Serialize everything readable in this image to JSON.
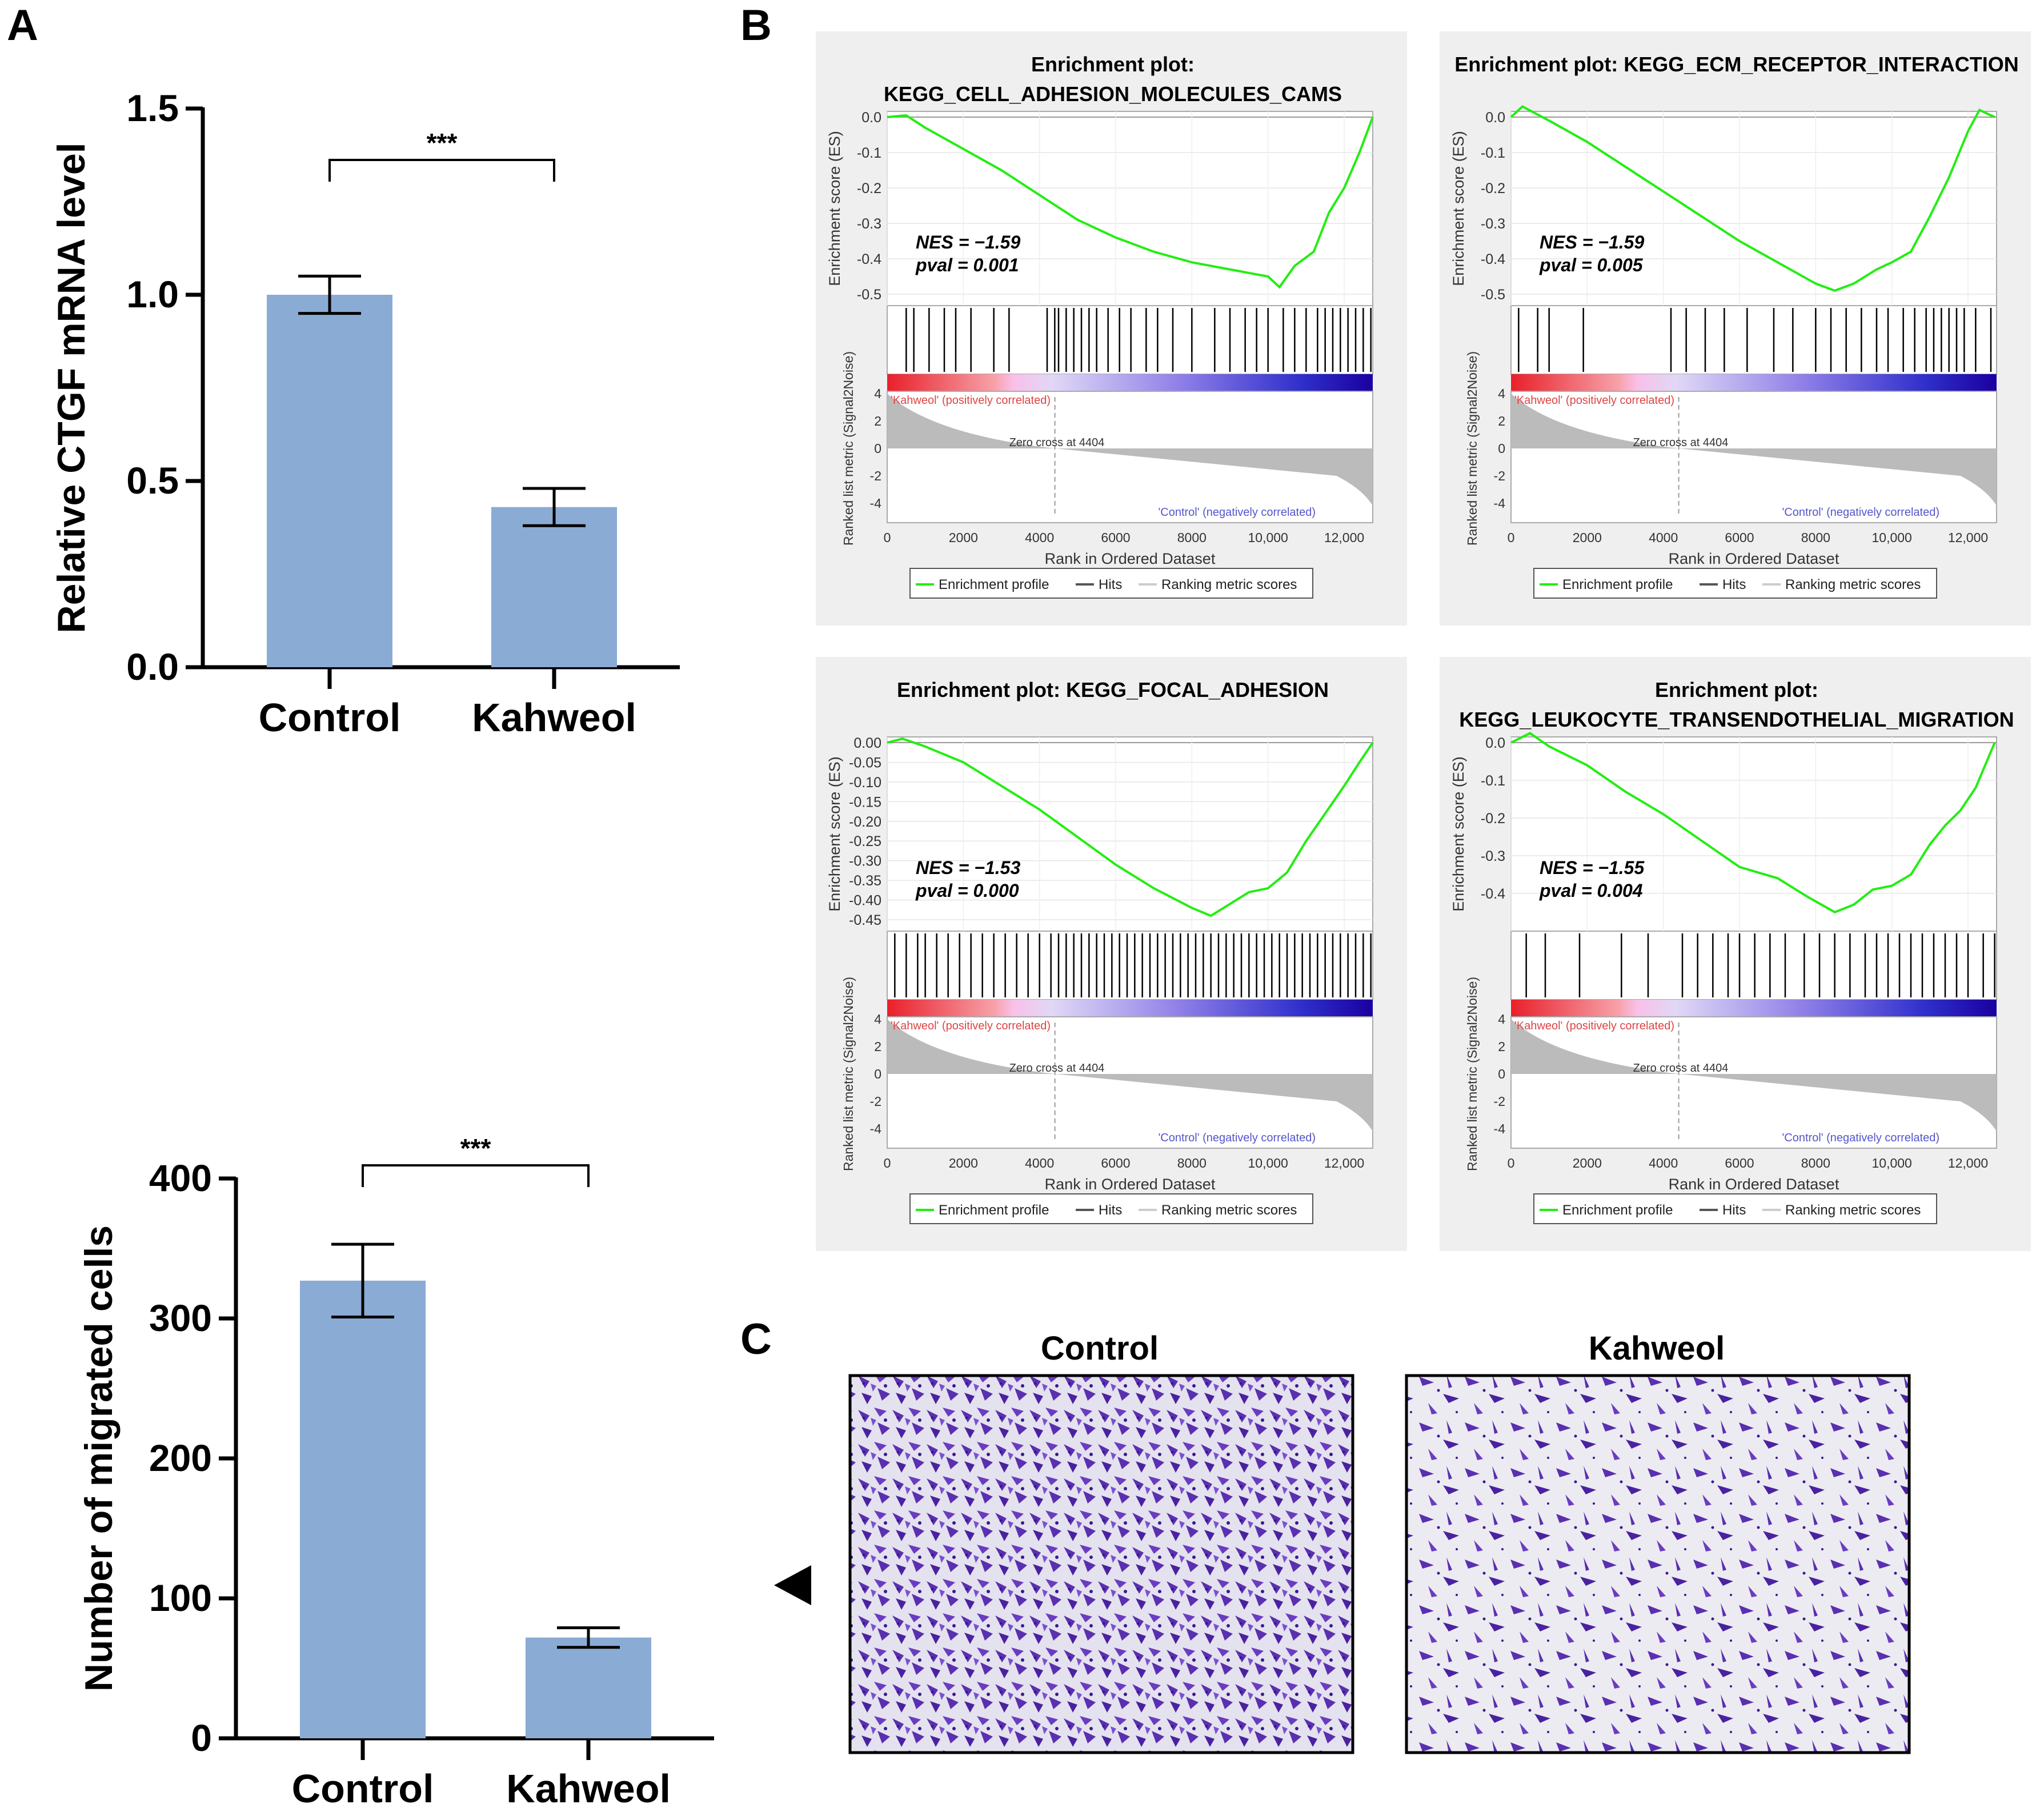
{
  "panel_labels": {
    "A": "A",
    "B": "B",
    "C": "C"
  },
  "significance": "***",
  "colors": {
    "bar": "#8aabd4",
    "es_line": "#22ee11",
    "panel_bg": "#efefef",
    "neg_label": "#5555cc",
    "pos_label": "#dd4444",
    "cells": "#5a2fb0"
  },
  "gsea_common": {
    "es_ylabel": "Enrichment score (ES)",
    "metric_ylabel": "Ranked list metric (Signal2Noise)",
    "xlabel": "Rank in Ordered Dataset",
    "pos_label": "'Kahweol' (positively correlated)",
    "neg_label": "'Control' (negatively correlated)",
    "zero_cross": "Zero cross at 4404",
    "legend": [
      "Enrichment profile",
      "Hits",
      "Ranking metric scores"
    ],
    "x_ticks": [
      "0",
      "2000",
      "4000",
      "6000",
      "8000",
      "10,000",
      "12,000"
    ],
    "metric_ticks": [
      "4",
      "2",
      "0",
      "-2",
      "-4"
    ]
  },
  "images_c": {
    "left_label": "Control",
    "right_label": "Kahweol"
  },
  "chart_data": [
    {
      "type": "bar",
      "title": "",
      "categories": [
        "Control",
        "Kahweol"
      ],
      "values": [
        1.0,
        0.43
      ],
      "errors": [
        0.05,
        0.05
      ],
      "ylabel": "Relative CTGF mRNA level",
      "xlabel": "",
      "ylim": [
        0,
        1.5
      ],
      "y_ticks": [
        "0.0",
        "0.5",
        "1.0",
        "1.5"
      ]
    },
    {
      "type": "bar",
      "title": "",
      "categories": [
        "Control",
        "Kahweol"
      ],
      "values": [
        327,
        72
      ],
      "errors": [
        26,
        7
      ],
      "ylabel": "Number of migrated cells",
      "xlabel": "",
      "ylim": [
        0,
        400
      ],
      "y_ticks": [
        "0",
        "100",
        "200",
        "300",
        "400"
      ]
    },
    {
      "type": "line",
      "title_lines": [
        "Enrichment plot:",
        "KEGG_CELL_ADHESION_MOLECULES_CAMS"
      ],
      "nes": "NES = −1.59",
      "pval": "pval = 0.001",
      "ylim": [
        -0.5,
        0.0
      ],
      "y_ticks": [
        "0.0",
        "-0.1",
        "-0.2",
        "-0.3",
        "-0.4",
        "-0.5"
      ],
      "x": [
        0,
        500,
        1000,
        2000,
        3000,
        4000,
        5000,
        6000,
        7000,
        8000,
        9000,
        9500,
        10000,
        10300,
        10700,
        11200,
        11600,
        12000,
        12400,
        12750
      ],
      "y": [
        0.0,
        0.005,
        -0.03,
        -0.09,
        -0.15,
        -0.22,
        -0.29,
        -0.34,
        -0.38,
        -0.41,
        -0.43,
        -0.44,
        -0.45,
        -0.48,
        -0.42,
        -0.38,
        -0.27,
        -0.2,
        -0.1,
        0.0
      ],
      "hits": [
        500,
        700,
        1100,
        1500,
        1800,
        2200,
        2800,
        3200,
        4200,
        4400,
        4500,
        4700,
        4900,
        5100,
        5300,
        5500,
        5800,
        6100,
        6400,
        6800,
        7100,
        7500,
        8000,
        8600,
        9000,
        9400,
        9700,
        10000,
        10400,
        10700,
        11000,
        11300,
        11500,
        11700,
        11900,
        12100,
        12300,
        12500,
        12700
      ]
    },
    {
      "type": "line",
      "title_lines": [
        "Enrichment plot: KEGG_ECM_RECEPTOR_INTERACTION"
      ],
      "nes": "NES = −1.59",
      "pval": "pval = 0.005",
      "ylim": [
        -0.5,
        0.0
      ],
      "y_ticks": [
        "0.0",
        "-0.1",
        "-0.2",
        "-0.3",
        "-0.4",
        "-0.5"
      ],
      "x": [
        0,
        300,
        1000,
        2000,
        3000,
        4000,
        5000,
        6000,
        7000,
        8000,
        8500,
        9000,
        9600,
        10000,
        10500,
        11000,
        11500,
        12000,
        12300,
        12700
      ],
      "y": [
        0.0,
        0.03,
        -0.01,
        -0.07,
        -0.14,
        -0.21,
        -0.28,
        -0.35,
        -0.41,
        -0.47,
        -0.49,
        -0.47,
        -0.43,
        -0.41,
        -0.38,
        -0.28,
        -0.17,
        -0.04,
        0.02,
        0.0
      ],
      "hits": [
        200,
        700,
        1000,
        1900,
        4200,
        4600,
        5100,
        5600,
        6200,
        6900,
        7400,
        8000,
        8400,
        8800,
        9200,
        9600,
        9900,
        10300,
        10600,
        10900,
        11100,
        11300,
        11500,
        11700,
        11900,
        12200,
        12600
      ]
    },
    {
      "type": "line",
      "title_lines": [
        "Enrichment plot: KEGG_FOCAL_ADHESION"
      ],
      "nes": "NES = −1.53",
      "pval": "pval = 0.000",
      "ylim": [
        -0.45,
        0.0
      ],
      "y_ticks": [
        "0.00",
        "-0.05",
        "-0.10",
        "-0.15",
        "-0.20",
        "-0.25",
        "-0.30",
        "-0.35",
        "-0.40",
        "-0.45"
      ],
      "x": [
        0,
        400,
        1000,
        2000,
        3000,
        4000,
        5000,
        6000,
        7000,
        8000,
        8500,
        9000,
        9500,
        10000,
        10500,
        11000,
        11500,
        12000,
        12400,
        12750
      ],
      "y": [
        0.0,
        0.01,
        -0.01,
        -0.05,
        -0.11,
        -0.17,
        -0.24,
        -0.31,
        -0.37,
        -0.42,
        -0.44,
        -0.41,
        -0.38,
        -0.37,
        -0.33,
        -0.25,
        -0.18,
        -0.11,
        -0.05,
        0.0
      ],
      "hits": [
        200,
        500,
        800,
        1000,
        1300,
        1600,
        1900,
        2200,
        2500,
        2800,
        3100,
        3400,
        3700,
        4000,
        4300,
        4500,
        4700,
        4900,
        5100,
        5300,
        5500,
        5700,
        5900,
        6100,
        6300,
        6500,
        6700,
        6900,
        7100,
        7300,
        7500,
        7700,
        7900,
        8100,
        8300,
        8500,
        8700,
        8900,
        9100,
        9300,
        9500,
        9700,
        9900,
        10100,
        10300,
        10500,
        10700,
        10900,
        11100,
        11300,
        11500,
        11700,
        11900,
        12100,
        12300,
        12500,
        12700
      ]
    },
    {
      "type": "line",
      "title_lines": [
        "Enrichment plot:",
        "KEGG_LEUKOCYTE_TRANSENDOTHELIAL_MIGRATION"
      ],
      "nes": "NES = −1.55",
      "pval": "pval = 0.004",
      "ylim": [
        -0.47,
        0.0
      ],
      "y_ticks": [
        "0.0",
        "-0.1",
        "-0.2",
        "-0.3",
        "-0.4"
      ],
      "x": [
        0,
        500,
        1000,
        2000,
        3000,
        4000,
        5000,
        6000,
        7000,
        7800,
        8500,
        9000,
        9500,
        10000,
        10500,
        11000,
        11400,
        11800,
        12200,
        12700
      ],
      "y": [
        0.0,
        0.025,
        -0.01,
        -0.06,
        -0.13,
        -0.19,
        -0.26,
        -0.33,
        -0.36,
        -0.41,
        -0.45,
        -0.43,
        -0.39,
        -0.38,
        -0.35,
        -0.27,
        -0.22,
        -0.18,
        -0.12,
        0.0
      ],
      "hits": [
        400,
        900,
        1800,
        2900,
        3600,
        4500,
        4900,
        5300,
        5700,
        6000,
        6400,
        6800,
        7200,
        7700,
        8100,
        8500,
        8900,
        9300,
        9600,
        9900,
        10200,
        10500,
        10800,
        11100,
        11400,
        11700,
        12000,
        12400,
        12700
      ]
    }
  ]
}
